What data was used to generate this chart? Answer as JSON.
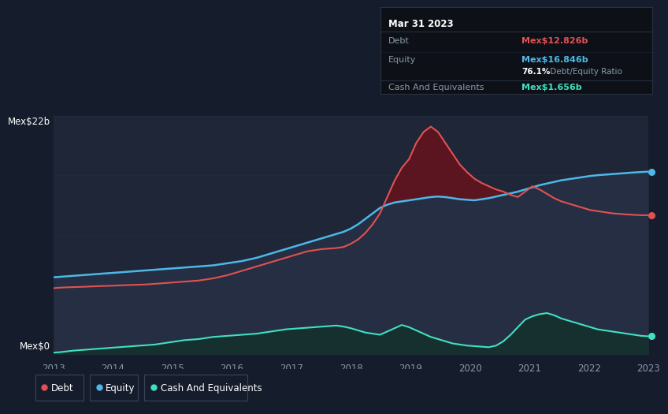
{
  "background_color": "#151c2c",
  "plot_bg_color": "#1e2638",
  "title": "Mar 31 2023",
  "ylabel_top": "Mex$22b",
  "ylabel_bottom": "Mex$0",
  "debt_color": "#e05252",
  "equity_color": "#4db8e8",
  "cash_color": "#40e0c0",
  "equity_fill_color": "#2a3a5a",
  "debt_over_equity_fill": "#6a1a2e",
  "cash_fill_color": "#1a4040",
  "tooltip_bg": "#0d1117",
  "tooltip_border": "#2a3040",
  "tooltip_title": "Mar 31 2023",
  "tooltip_debt_label": "Debt",
  "tooltip_debt_value": "Mex$12.826b",
  "tooltip_equity_label": "Equity",
  "tooltip_equity_value": "Mex$16.846b",
  "tooltip_ratio_bold": "76.1%",
  "tooltip_ratio_text": " Debt/Equity Ratio",
  "tooltip_cash_label": "Cash And Equivalents",
  "tooltip_cash_value": "Mex$1.656b",
  "x_ticks": [
    "2013",
    "2014",
    "2015",
    "2016",
    "2017",
    "2018",
    "2019",
    "2020",
    "2021",
    "2022",
    "2023"
  ],
  "legend_items": [
    "Debt",
    "Equity",
    "Cash And Equivalents"
  ],
  "legend_colors": [
    "#e05252",
    "#4db8e8",
    "#40e0c0"
  ],
  "debt": [
    6.1,
    6.15,
    6.18,
    6.2,
    6.22,
    6.25,
    6.28,
    6.3,
    6.32,
    6.35,
    6.38,
    6.4,
    6.42,
    6.45,
    6.5,
    6.55,
    6.6,
    6.65,
    6.7,
    6.75,
    6.8,
    6.9,
    7.0,
    7.15,
    7.3,
    7.5,
    7.7,
    7.9,
    8.1,
    8.3,
    8.5,
    8.7,
    8.9,
    9.1,
    9.3,
    9.5,
    9.6,
    9.7,
    9.75,
    9.8,
    9.9,
    10.2,
    10.6,
    11.2,
    12.0,
    13.0,
    14.5,
    16.0,
    17.2,
    18.0,
    19.5,
    20.5,
    21.0,
    20.5,
    19.5,
    18.5,
    17.5,
    16.8,
    16.2,
    15.8,
    15.5,
    15.2,
    15.0,
    14.7,
    14.5,
    15.0,
    15.5,
    15.2,
    14.8,
    14.4,
    14.1,
    13.9,
    13.7,
    13.5,
    13.3,
    13.2,
    13.1,
    13.0,
    12.95,
    12.9,
    12.86,
    12.83,
    12.826
  ],
  "equity": [
    7.1,
    7.15,
    7.2,
    7.25,
    7.3,
    7.35,
    7.4,
    7.45,
    7.5,
    7.55,
    7.6,
    7.65,
    7.7,
    7.75,
    7.8,
    7.85,
    7.9,
    7.95,
    8.0,
    8.05,
    8.1,
    8.15,
    8.2,
    8.3,
    8.4,
    8.5,
    8.6,
    8.75,
    8.9,
    9.1,
    9.3,
    9.5,
    9.7,
    9.9,
    10.1,
    10.3,
    10.5,
    10.7,
    10.9,
    11.1,
    11.3,
    11.6,
    12.0,
    12.5,
    13.0,
    13.5,
    13.8,
    14.0,
    14.1,
    14.2,
    14.3,
    14.4,
    14.5,
    14.55,
    14.5,
    14.4,
    14.3,
    14.25,
    14.2,
    14.3,
    14.4,
    14.55,
    14.7,
    14.85,
    15.0,
    15.2,
    15.4,
    15.6,
    15.75,
    15.9,
    16.05,
    16.15,
    16.25,
    16.35,
    16.45,
    16.52,
    16.57,
    16.62,
    16.67,
    16.72,
    16.77,
    16.81,
    16.846
  ],
  "cash": [
    0.15,
    0.2,
    0.28,
    0.35,
    0.4,
    0.45,
    0.5,
    0.55,
    0.6,
    0.65,
    0.7,
    0.75,
    0.8,
    0.85,
    0.9,
    1.0,
    1.1,
    1.2,
    1.3,
    1.35,
    1.4,
    1.5,
    1.6,
    1.65,
    1.7,
    1.75,
    1.8,
    1.85,
    1.9,
    2.0,
    2.1,
    2.2,
    2.3,
    2.35,
    2.4,
    2.45,
    2.5,
    2.55,
    2.6,
    2.65,
    2.55,
    2.4,
    2.2,
    2.0,
    1.9,
    1.8,
    2.1,
    2.4,
    2.7,
    2.5,
    2.2,
    1.9,
    1.6,
    1.4,
    1.2,
    1.0,
    0.9,
    0.8,
    0.75,
    0.7,
    0.65,
    0.8,
    1.2,
    1.8,
    2.5,
    3.2,
    3.5,
    3.7,
    3.8,
    3.6,
    3.3,
    3.1,
    2.9,
    2.7,
    2.5,
    2.3,
    2.2,
    2.1,
    2.0,
    1.9,
    1.8,
    1.7,
    1.656
  ],
  "ymin": 0,
  "ymax": 22,
  "grid_color": "#252d40",
  "n_points": 83
}
